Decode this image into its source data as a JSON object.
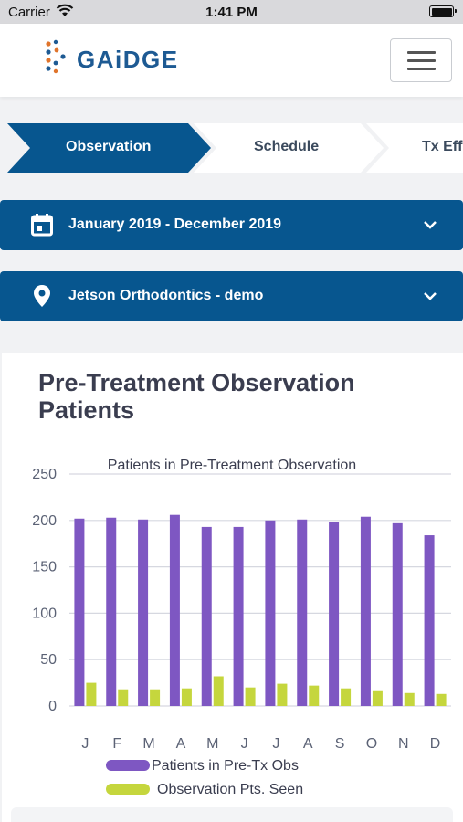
{
  "status_bar": {
    "carrier": "Carrier",
    "time": "1:41 PM"
  },
  "app": {
    "logo_text": "GAiDGE"
  },
  "icons": {
    "menu": "hamburger-menu-icon",
    "calendar": "calendar-icon",
    "location": "map-pin-icon",
    "chevron": "chevron-down-icon",
    "wifi": "wifi-icon",
    "battery": "battery-icon"
  },
  "steps": [
    {
      "label": "Observation",
      "active": true
    },
    {
      "label": "Schedule",
      "active": false
    },
    {
      "label": "Tx Effi",
      "active": false
    }
  ],
  "filters": {
    "date_range": "January 2019 - December 2019",
    "location": "Jetson Orthodontics - demo"
  },
  "card": {
    "title": "Pre-Treatment Observation Patients"
  },
  "colors": {
    "primary": "#07568f",
    "series1": "#7e57c2",
    "series2": "#c5d63d"
  },
  "chart_data": {
    "type": "bar",
    "title": "Patients in Pre-Treatment Observation",
    "categories": [
      "J",
      "F",
      "M",
      "A",
      "M",
      "J",
      "J",
      "A",
      "S",
      "O",
      "N",
      "D"
    ],
    "ylim": [
      0,
      250
    ],
    "yticks": [
      0,
      50,
      100,
      150,
      200,
      250
    ],
    "grid": true,
    "legend_position": "bottom",
    "series": [
      {
        "name": "Patients in Pre-Tx Obs",
        "color": "#7e57c2",
        "values": [
          202,
          203,
          201,
          206,
          193,
          193,
          200,
          201,
          198,
          204,
          197,
          184
        ]
      },
      {
        "name": "Observation Pts. Seen",
        "color": "#c5d63d",
        "values": [
          25,
          18,
          18,
          19,
          32,
          20,
          24,
          22,
          19,
          16,
          14,
          13
        ]
      }
    ]
  }
}
